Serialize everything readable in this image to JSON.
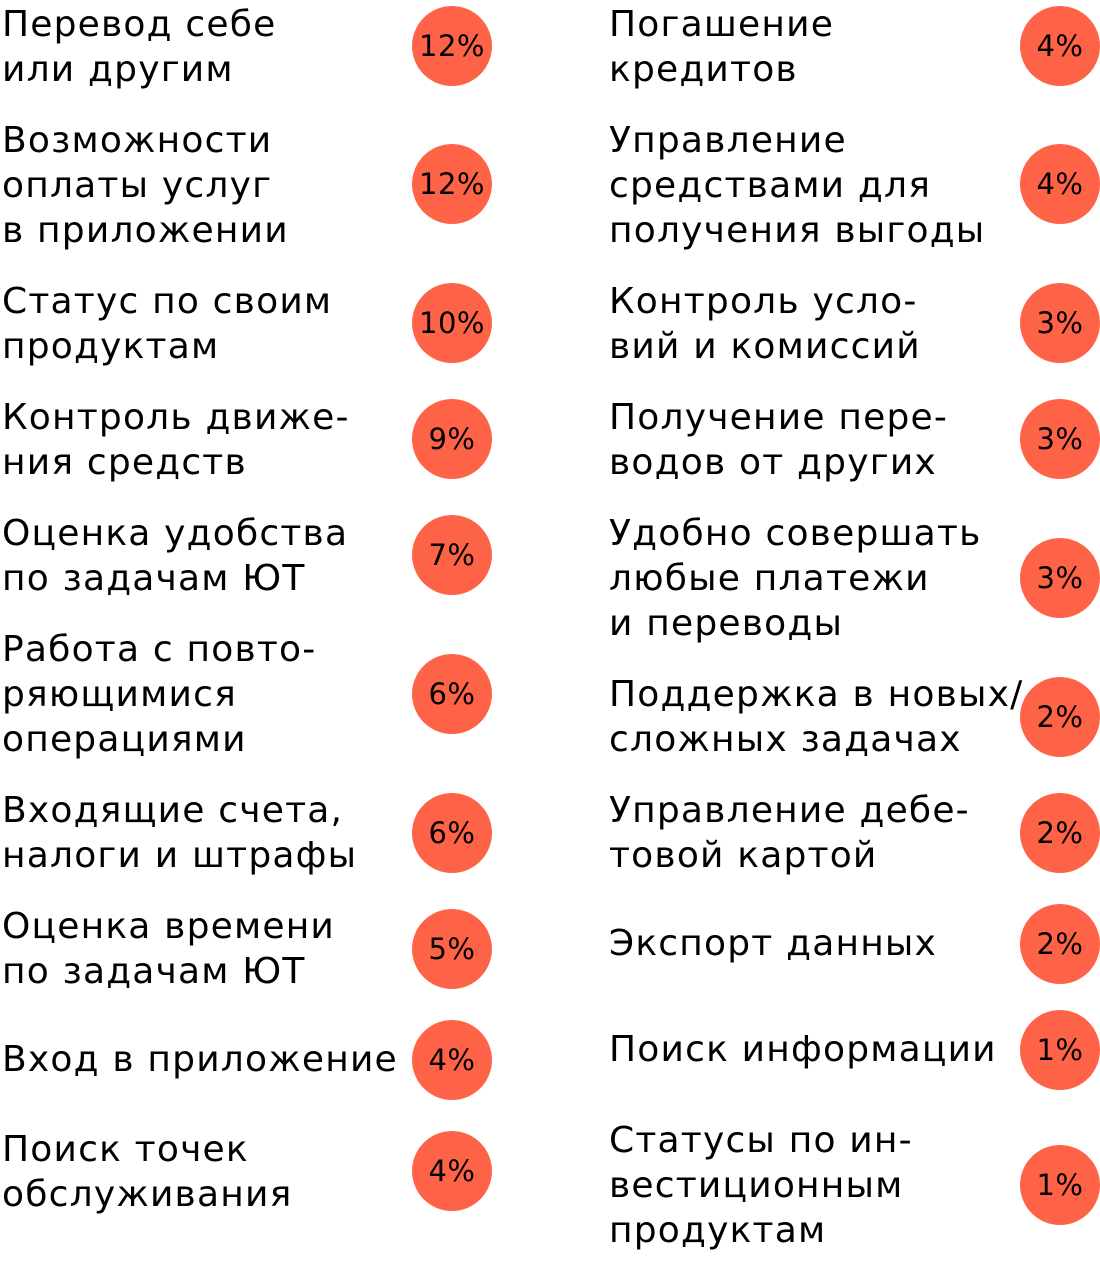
{
  "accent_color": "#ff6347",
  "items": [
    {
      "label": "Перевод себе\nили другим",
      "value": "12%"
    },
    {
      "label": "Возможности\nоплаты услуг\nв приложении",
      "value": "12%"
    },
    {
      "label": "Статус по своим\nпродуктам",
      "value": "10%"
    },
    {
      "label": "Контроль движе-\nния средств",
      "value": "9%"
    },
    {
      "label": "Оценка удобства\nпо задачам ЮТ",
      "value": "7%"
    },
    {
      "label": "Работа с повто-\nряющимися\nоперациями",
      "value": "6%"
    },
    {
      "label": "Входящие счета,\nналоги и штрафы",
      "value": "6%"
    },
    {
      "label": "Оценка времени\nпо задачам ЮТ",
      "value": "5%"
    },
    {
      "label": "Вход в приложение",
      "value": "4%"
    },
    {
      "label": "Поиск точек\nобслуживания",
      "value": "4%"
    },
    {
      "label": "Погашение\nкредитов",
      "value": "4%"
    },
    {
      "label": "Управление\nсредствами для\nполучения выгоды",
      "value": "4%"
    },
    {
      "label": "Контроль усло-\nвий и комиссий",
      "value": "3%"
    },
    {
      "label": "Получение пере-\nводов от других",
      "value": "3%"
    },
    {
      "label": "Удобно совершать\nлюбые платежи\nи переводы",
      "value": "3%"
    },
    {
      "label": "Поддержка в новых/\nсложных задачах",
      "value": "2%"
    },
    {
      "label": "Управление дебе-\nтовой картой",
      "value": "2%"
    },
    {
      "label": "Экспорт данных",
      "value": "2%"
    },
    {
      "label": "Поиск информации",
      "value": "1%"
    },
    {
      "label": "Статусы по ин-\nвестиционным\nпродуктам",
      "value": "1%"
    }
  ]
}
